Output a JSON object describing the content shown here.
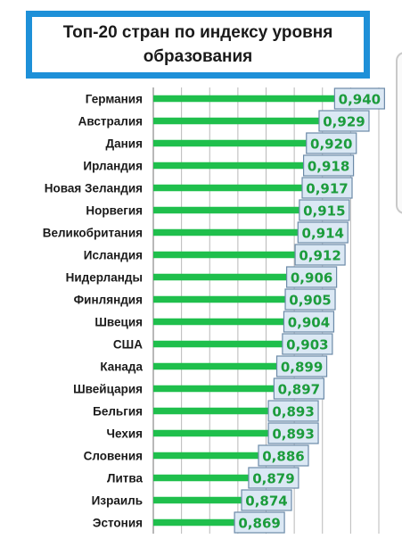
{
  "chart_data": {
    "type": "bar",
    "orientation": "horizontal",
    "title": "Топ-20 стран  по индексу уровня образования",
    "categories": [
      "Германия",
      "Австралия",
      "Дания",
      "Ирландия",
      "Новая Зеландия",
      "Норвегия",
      "Великобритания",
      "Исландия",
      "Нидерланды",
      "Финляндия",
      "Швеция",
      "США",
      "Канада",
      "Швейцария",
      "Бельгия",
      "Чехия",
      "Словения",
      "Литва",
      "Израиль",
      "Эстония"
    ],
    "values": [
      0.94,
      0.929,
      0.92,
      0.918,
      0.917,
      0.915,
      0.914,
      0.912,
      0.906,
      0.905,
      0.904,
      0.903,
      0.899,
      0.897,
      0.893,
      0.893,
      0.886,
      0.879,
      0.874,
      0.869
    ],
    "value_labels": [
      "0,940",
      "0,929",
      "0,920",
      "0,918",
      "0,917",
      "0,915",
      "0,914",
      "0,912",
      "0,906",
      "0,905",
      "0,904",
      "0,903",
      "0,899",
      "0,897",
      "0,893",
      "0,893",
      "0,886",
      "0,879",
      "0,874",
      "0,869"
    ],
    "xlim": [
      0.8,
      0.96
    ],
    "grid": true,
    "legend": "none"
  },
  "colors": {
    "bar": "#1fbf4c",
    "value_text": "#1c9c3c",
    "label_box_fill": "#dbe8f4",
    "label_box_border": "#6c8aa8",
    "title_border": "#1e90d8",
    "grid": "#b9b9b9"
  }
}
